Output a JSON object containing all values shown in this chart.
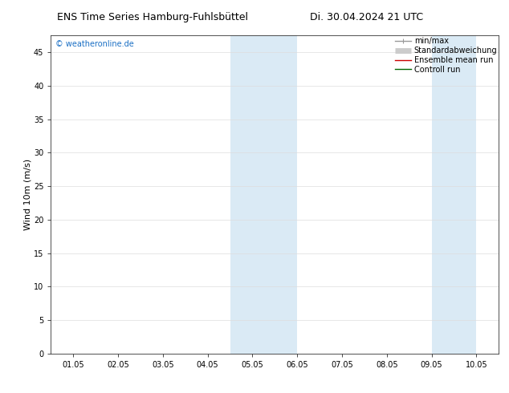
{
  "title_left": "ENS Time Series Hamburg-Fuhlsbüttel",
  "title_right": "Di. 30.04.2024 21 UTC",
  "ylabel": "Wind 10m (m/s)",
  "watermark": "© weatheronline.de",
  "x_tick_labels": [
    "01.05",
    "02.05",
    "03.05",
    "04.05",
    "05.05",
    "06.05",
    "07.05",
    "08.05",
    "09.05",
    "10.05"
  ],
  "x_tick_positions": [
    0,
    1,
    2,
    3,
    4,
    5,
    6,
    7,
    8,
    9
  ],
  "ylim": [
    0,
    47.5
  ],
  "yticks": [
    0,
    5,
    10,
    15,
    20,
    25,
    30,
    35,
    40,
    45
  ],
  "xlim": [
    -0.5,
    9.5
  ],
  "shaded_regions": [
    {
      "xmin": 3.5,
      "xmax": 4.0,
      "color": "#daeaf5"
    },
    {
      "xmin": 4.0,
      "xmax": 5.0,
      "color": "#daeaf5"
    },
    {
      "xmin": 8.0,
      "xmax": 8.5,
      "color": "#daeaf5"
    },
    {
      "xmin": 8.5,
      "xmax": 9.0,
      "color": "#daeaf5"
    }
  ],
  "legend_items": [
    {
      "label": "min/max",
      "color": "#999999",
      "lw": 1.0
    },
    {
      "label": "Standardabweichung",
      "color": "#cccccc",
      "lw": 5
    },
    {
      "label": "Ensemble mean run",
      "color": "#cc0000",
      "lw": 1.0
    },
    {
      "label": "Controll run",
      "color": "#006600",
      "lw": 1.0
    }
  ],
  "bg_color": "#ffffff",
  "plot_bg_color": "#ffffff",
  "watermark_color": "#1a6fc4",
  "title_fontsize": 9,
  "label_fontsize": 8,
  "tick_fontsize": 7,
  "legend_fontsize": 7,
  "watermark_fontsize": 7
}
